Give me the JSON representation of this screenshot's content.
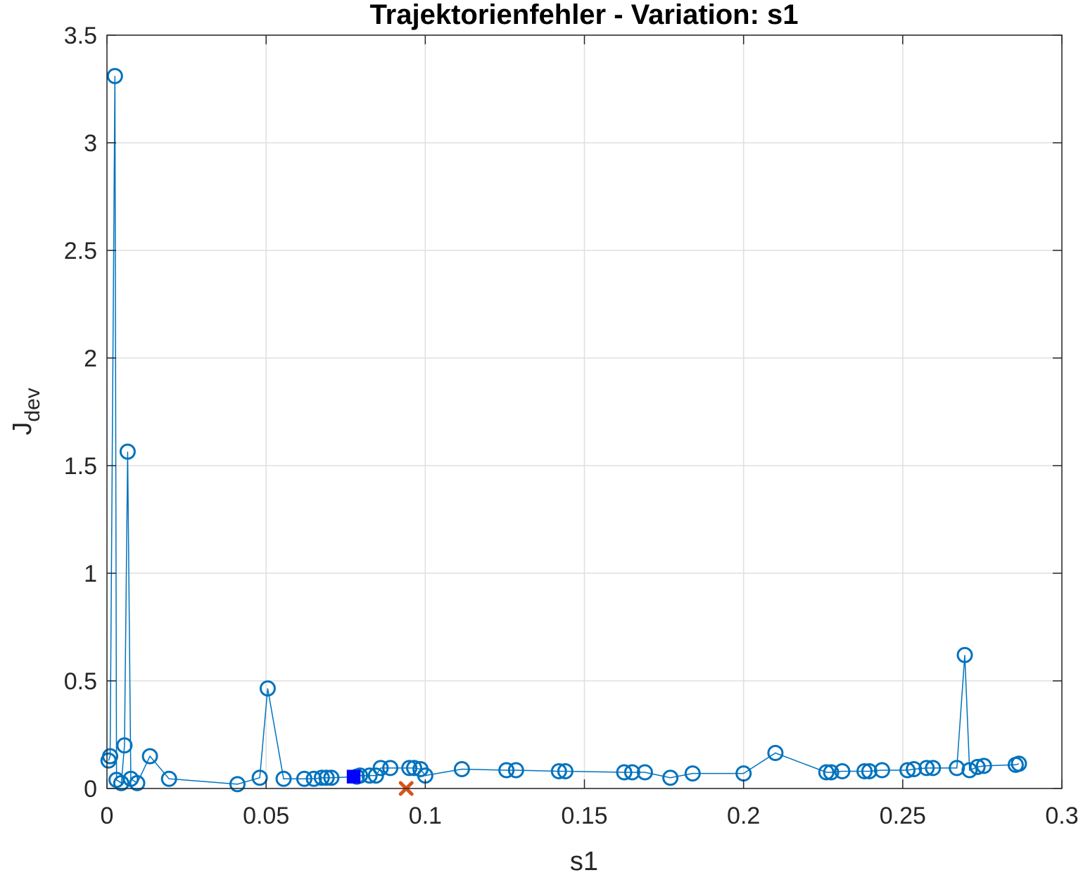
{
  "chart_data": {
    "type": "scatter",
    "title": "Trajektorienfehler - Variation: s1",
    "xlabel": "s1",
    "ylabel_main": "J",
    "ylabel_sub": "dev",
    "xlim": [
      0,
      0.3
    ],
    "ylim": [
      0,
      3.5
    ],
    "grid": true,
    "x_ticks": [
      "0",
      "0.05",
      "0.1",
      "0.15",
      "0.2",
      "0.25",
      "0.3"
    ],
    "y_ticks": [
      "0",
      "0.5",
      "1",
      "1.5",
      "2",
      "2.5",
      "3",
      "3.5"
    ],
    "series": [
      {
        "style": "line-with-circle-markers",
        "color": "#0072BD",
        "points": [
          [
            0.0005,
            0.13
          ],
          [
            0.001,
            0.15
          ],
          [
            0.0025,
            3.31
          ],
          [
            0.003,
            0.04
          ],
          [
            0.0045,
            0.025
          ],
          [
            0.0055,
            0.2
          ],
          [
            0.0065,
            1.565
          ],
          [
            0.0075,
            0.045
          ],
          [
            0.0095,
            0.025
          ],
          [
            0.0135,
            0.15
          ],
          [
            0.0195,
            0.045
          ],
          [
            0.041,
            0.02
          ],
          [
            0.048,
            0.05
          ],
          [
            0.0505,
            0.465
          ],
          [
            0.0555,
            0.045
          ],
          [
            0.062,
            0.045
          ],
          [
            0.065,
            0.045
          ],
          [
            0.0675,
            0.05
          ],
          [
            0.069,
            0.05
          ],
          [
            0.0705,
            0.05
          ],
          [
            0.0785,
            0.055
          ],
          [
            0.0795,
            0.06
          ],
          [
            0.0825,
            0.06
          ],
          [
            0.0845,
            0.06
          ],
          [
            0.086,
            0.095
          ],
          [
            0.089,
            0.095
          ],
          [
            0.095,
            0.095
          ],
          [
            0.0965,
            0.095
          ],
          [
            0.0985,
            0.09
          ],
          [
            0.1,
            0.06
          ],
          [
            0.1115,
            0.09
          ],
          [
            0.1255,
            0.085
          ],
          [
            0.1285,
            0.085
          ],
          [
            0.142,
            0.08
          ],
          [
            0.144,
            0.08
          ],
          [
            0.1625,
            0.075
          ],
          [
            0.165,
            0.075
          ],
          [
            0.169,
            0.075
          ],
          [
            0.177,
            0.05
          ],
          [
            0.184,
            0.07
          ],
          [
            0.2,
            0.07
          ],
          [
            0.21,
            0.165
          ],
          [
            0.226,
            0.075
          ],
          [
            0.2275,
            0.075
          ],
          [
            0.231,
            0.08
          ],
          [
            0.238,
            0.08
          ],
          [
            0.2395,
            0.08
          ],
          [
            0.2435,
            0.085
          ],
          [
            0.2515,
            0.085
          ],
          [
            0.2535,
            0.09
          ],
          [
            0.2575,
            0.095
          ],
          [
            0.2595,
            0.095
          ],
          [
            0.267,
            0.095
          ],
          [
            0.2695,
            0.62
          ],
          [
            0.271,
            0.085
          ],
          [
            0.2735,
            0.1
          ],
          [
            0.2755,
            0.105
          ],
          [
            0.2855,
            0.11
          ],
          [
            0.2865,
            0.115
          ]
        ]
      }
    ],
    "markers": [
      {
        "shape": "square",
        "color": "#0000FF",
        "x": 0.0775,
        "y": 0.055
      },
      {
        "shape": "x",
        "color": "#D95319",
        "x": 0.094,
        "y": 0.0
      }
    ]
  }
}
